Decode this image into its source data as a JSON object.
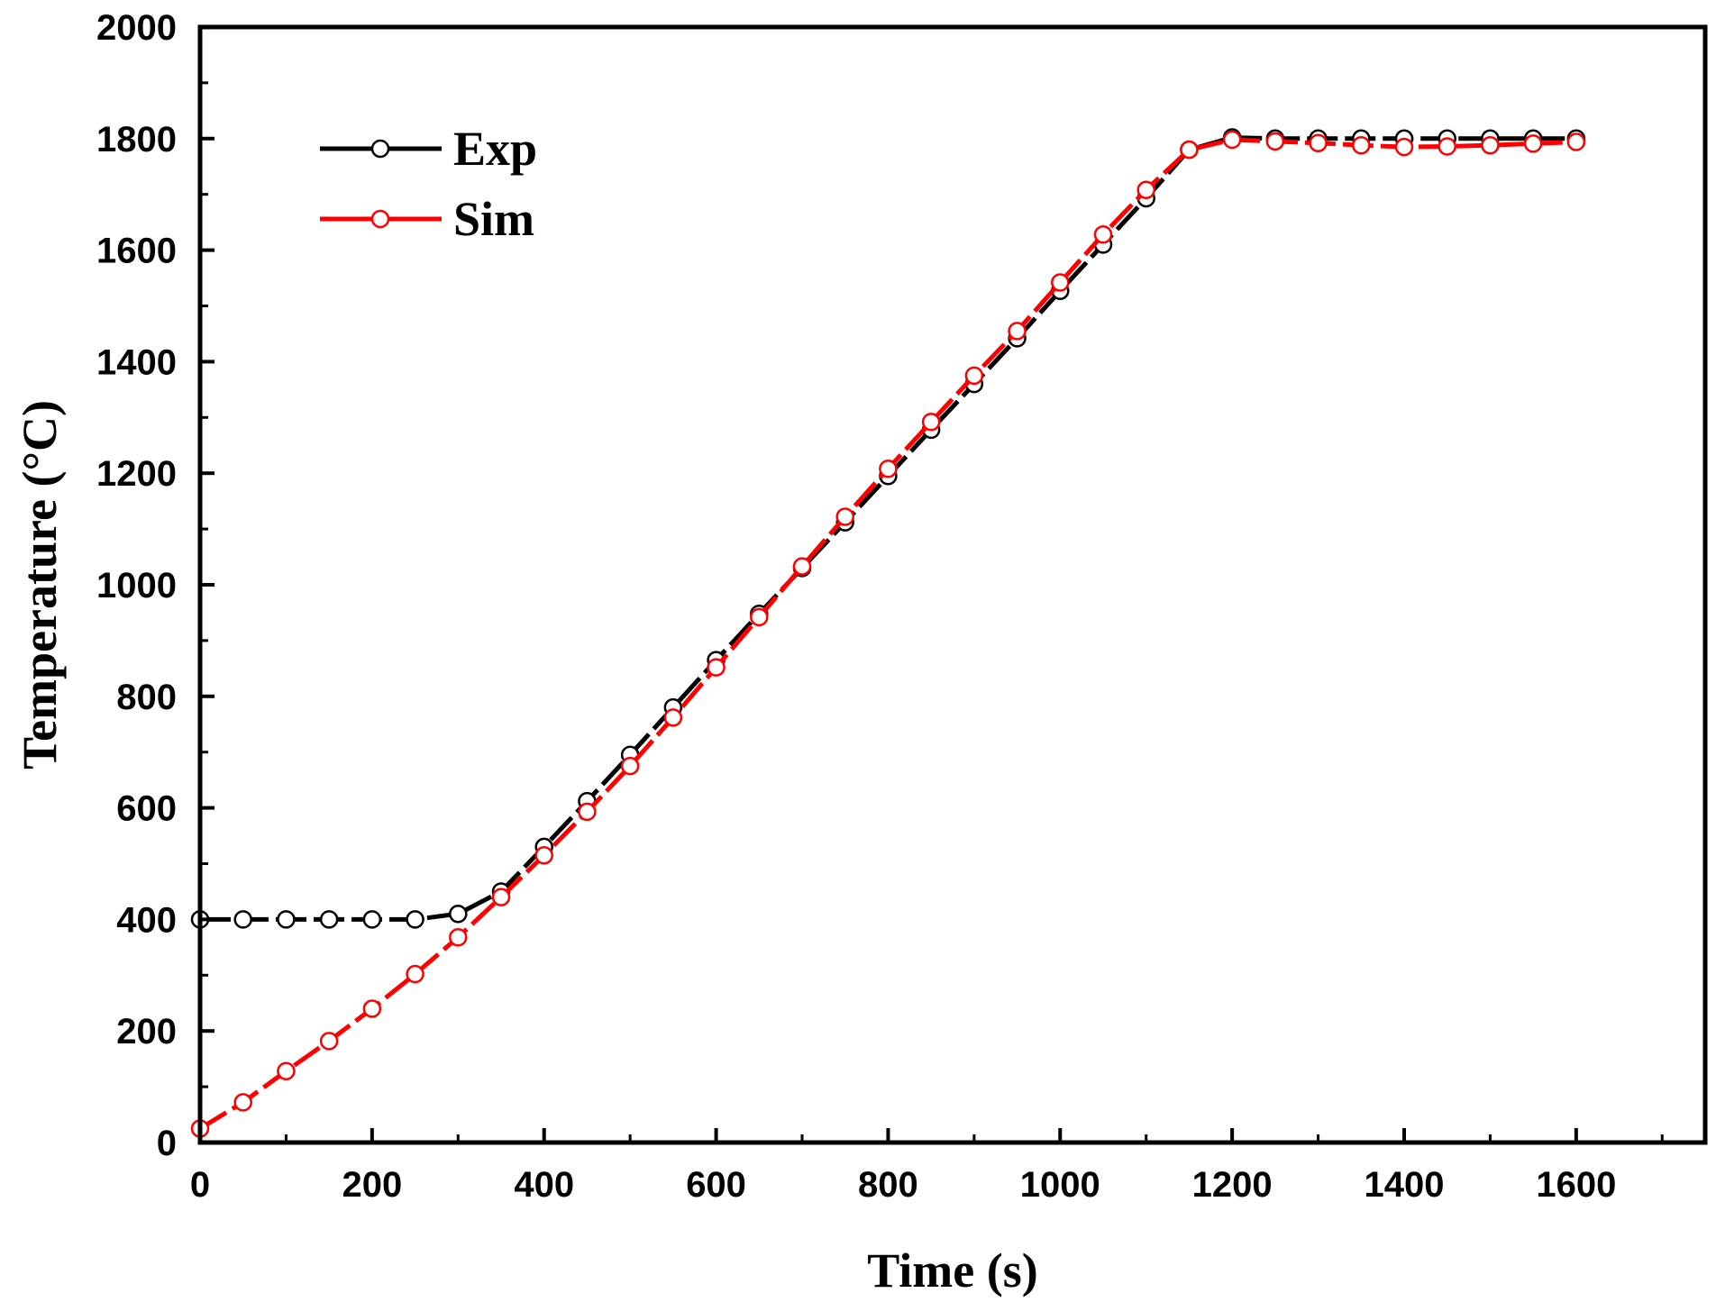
{
  "chart_data": {
    "type": "line",
    "title": "",
    "xlabel": "Time (s)",
    "ylabel": "Temperature (°C)",
    "xlim": [
      0,
      1750
    ],
    "ylim": [
      0,
      2000
    ],
    "xticks": [
      0,
      200,
      400,
      600,
      800,
      1000,
      1200,
      1400,
      1600
    ],
    "yticks": [
      0,
      200,
      400,
      600,
      800,
      1000,
      1200,
      1400,
      1600,
      1800,
      2000
    ],
    "grid": false,
    "legend_position": "top-left",
    "series": [
      {
        "name": "Exp",
        "color": "#000000",
        "marker": "open-circle",
        "x": [
          0,
          50,
          100,
          150,
          200,
          250,
          300,
          350,
          400,
          450,
          500,
          550,
          600,
          650,
          700,
          750,
          800,
          850,
          900,
          950,
          1000,
          1050,
          1100,
          1150,
          1200,
          1250,
          1300,
          1350,
          1400,
          1450,
          1500,
          1550,
          1600
        ],
        "y": [
          400,
          400,
          400,
          400,
          400,
          400,
          410,
          450,
          530,
          612,
          695,
          780,
          865,
          948,
          1030,
          1112,
          1195,
          1278,
          1360,
          1442,
          1527,
          1610,
          1693,
          1780,
          1802,
          1800,
          1800,
          1800,
          1800,
          1800,
          1800,
          1800,
          1800
        ]
      },
      {
        "name": "Sim",
        "color": "#ff0000",
        "marker": "open-circle",
        "x": [
          0,
          50,
          100,
          150,
          200,
          250,
          300,
          350,
          400,
          450,
          500,
          550,
          600,
          650,
          700,
          750,
          800,
          850,
          900,
          950,
          1000,
          1050,
          1100,
          1150,
          1200,
          1250,
          1300,
          1350,
          1400,
          1450,
          1500,
          1550,
          1600
        ],
        "y": [
          25,
          72,
          128,
          182,
          240,
          302,
          368,
          440,
          515,
          593,
          675,
          762,
          852,
          942,
          1033,
          1122,
          1208,
          1292,
          1375,
          1455,
          1542,
          1628,
          1708,
          1780,
          1798,
          1795,
          1792,
          1788,
          1785,
          1786,
          1788,
          1791,
          1794
        ]
      }
    ]
  }
}
